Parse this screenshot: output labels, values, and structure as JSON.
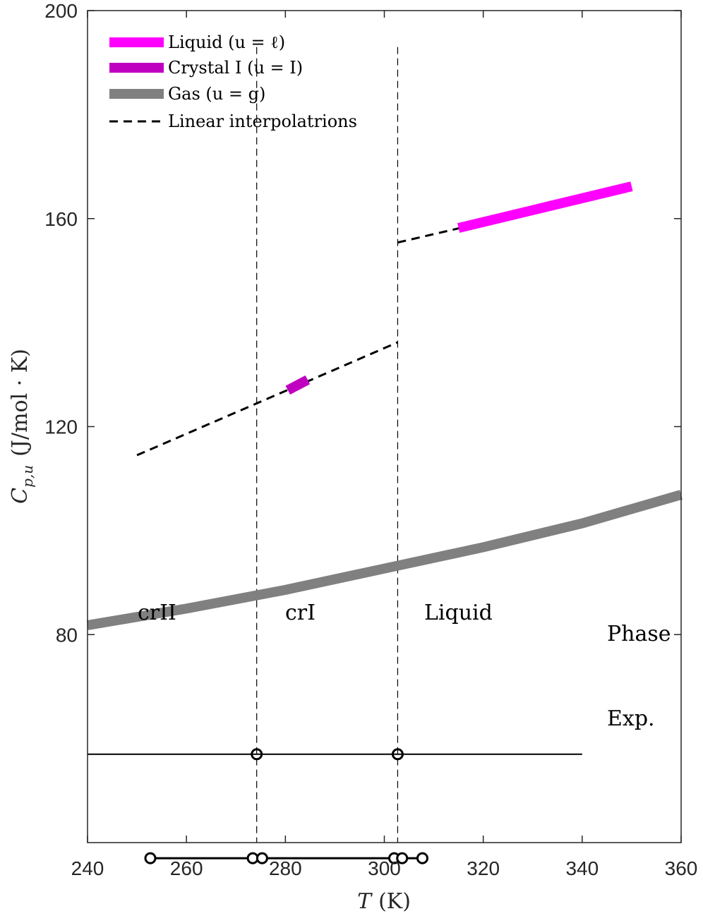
{
  "chart_data": {
    "type": "line",
    "xlabel_var": "T",
    "xlabel_unit": "(K)",
    "ylabel_var": "C",
    "ylabel_sub": "p,u",
    "ylabel_unit": "(J/mol · K)",
    "xlim": [
      240,
      360
    ],
    "ylim": [
      40,
      200
    ],
    "xticks": [
      240,
      260,
      280,
      300,
      320,
      340,
      360
    ],
    "yticks": [
      80,
      120,
      160,
      200
    ],
    "grid": false,
    "legend_position": "top-left",
    "series": [
      {
        "name": "Liquid (u = ℓ)",
        "color": "#ff00ff",
        "style": "thick",
        "x": [
          315,
          350
        ],
        "y": [
          158.2,
          166.2
        ]
      },
      {
        "name": "Crystal I (u = I)",
        "color": "#c000c0",
        "style": "thick",
        "x": [
          280.5,
          284.5
        ],
        "y": [
          127.0,
          129.0
        ]
      },
      {
        "name": "Gas (u = g)",
        "color": "#808080",
        "style": "thick",
        "x": [
          240,
          260,
          280,
          300,
          320,
          340,
          360
        ],
        "y": [
          81.8,
          85.0,
          88.6,
          92.7,
          96.8,
          101.4,
          106.9
        ]
      },
      {
        "name": "Linear interpolatrions",
        "color": "#000000",
        "style": "dashed",
        "segments": [
          {
            "x": [
              250,
              302.7
            ],
            "y": [
              114.5,
              136.2
            ]
          },
          {
            "x": [
              302.7,
              319
            ],
            "y": [
              155.4,
              159.0
            ]
          }
        ]
      }
    ],
    "transitions": {
      "x": [
        274.2,
        302.7
      ],
      "y_range": [
        40,
        193
      ]
    },
    "phase_line": {
      "label": "Phase",
      "y": 57,
      "x": [
        240,
        340
      ],
      "markers": [
        274.2,
        302.7
      ]
    },
    "exp_line": {
      "label": "Exp.",
      "y": 37,
      "x": [
        252.7,
        307.7
      ],
      "markers": [
        252.7,
        273.4,
        275.3,
        302.0,
        303.6,
        307.7
      ]
    },
    "phase_labels": [
      {
        "text": "crII",
        "x": 254.3,
        "y": 62
      },
      {
        "text": "crI",
        "x": 283.0,
        "y": 62
      },
      {
        "text": "Liquid",
        "x": 320.8,
        "y": 62
      }
    ]
  }
}
